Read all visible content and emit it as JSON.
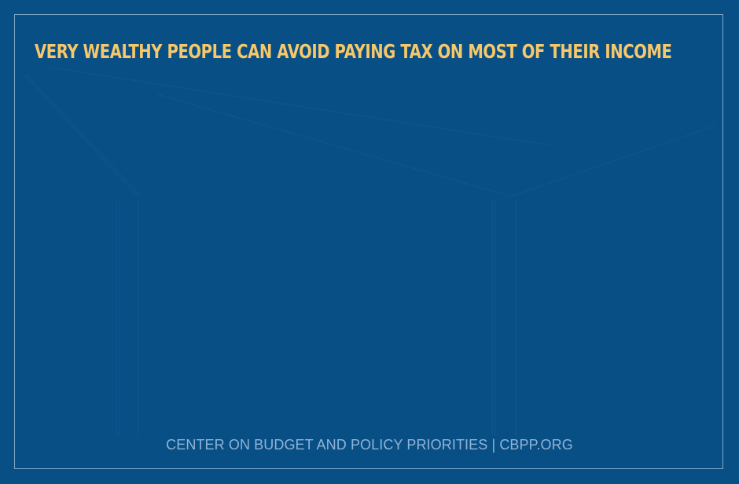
{
  "title": "VERY WEALTHY PEOPLE CAN AVOID PAYING TAX ON MOST OF THEIR INCOME",
  "footer": "CENTER ON BUDGET AND POLICY PRIORITIES | CBPP.ORG",
  "colors": {
    "background": "#084f86",
    "title": "#f6c86a",
    "footer": "#90b3d6",
    "frame": "#7fa6c8"
  }
}
